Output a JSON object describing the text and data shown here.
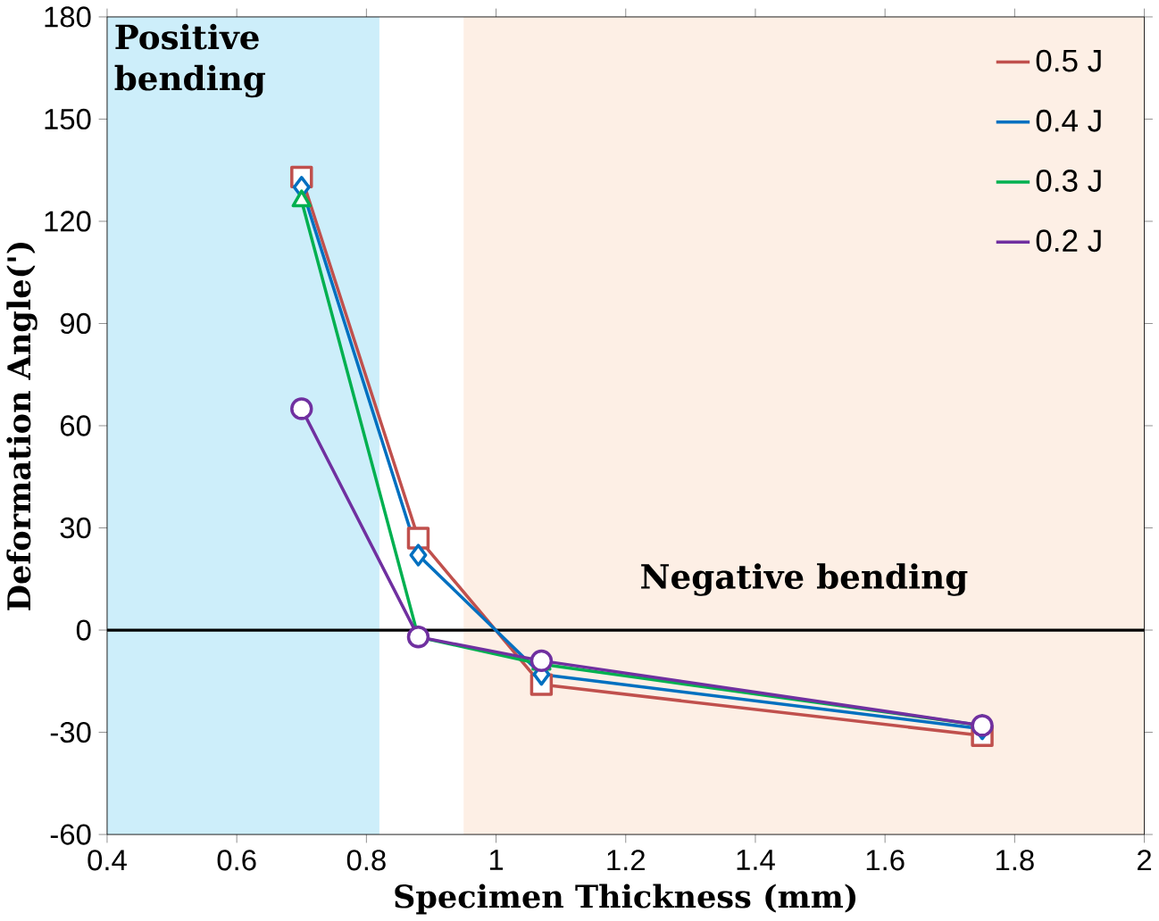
{
  "chart_data": {
    "type": "line",
    "xlabel": "Specimen Thickness (mm)",
    "ylabel": "Deformation Angle(')",
    "x": [
      0.7,
      0.88,
      1.07,
      1.75
    ],
    "series": [
      {
        "name": "0.5 J",
        "color": "#c0504d",
        "marker": "square",
        "values": [
          133,
          27,
          -16,
          -31
        ]
      },
      {
        "name": "0.4 J",
        "color": "#0070c0",
        "marker": "diamond",
        "values": [
          130,
          22,
          -13,
          -29
        ]
      },
      {
        "name": "0.3 J",
        "color": "#00b050",
        "marker": "triangle",
        "values": [
          126,
          -2,
          -10,
          -28
        ]
      },
      {
        "name": "0.2 J",
        "color": "#7030a0",
        "marker": "circle",
        "values": [
          65,
          -2,
          -9,
          -28
        ]
      }
    ],
    "xlim": [
      0.4,
      2
    ],
    "ylim": [
      -60,
      180
    ],
    "xticks": [
      0.4,
      0.6,
      0.8,
      1,
      1.2,
      1.4,
      1.6,
      1.8,
      2
    ],
    "yticks": [
      -60,
      -30,
      0,
      30,
      60,
      90,
      120,
      150,
      180
    ],
    "bands": [
      {
        "axis": "x",
        "from": 0.4,
        "to": 0.82,
        "label": "Positive bending",
        "color": "#cdeefa"
      },
      {
        "axis": "x",
        "from": 0.95,
        "to": 2,
        "label": "Negative bending",
        "color": "#fdefe5"
      }
    ],
    "ref_lines": [
      {
        "axis": "y",
        "value": 0
      }
    ],
    "legend": "top right",
    "grid": false,
    "line_style": "solid"
  }
}
